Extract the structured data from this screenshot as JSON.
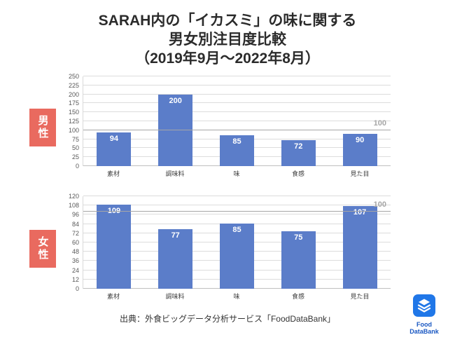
{
  "title": {
    "line1": "SARAH内の「イカスミ」の味に関する",
    "line2": "男女別注目度比較",
    "line3": "（2019年9月～2022年8月）"
  },
  "source": "出典：外食ビッグデータ分析サービス「FoodDataBank」",
  "logo": {
    "icon": "layers-icon",
    "line1": "Food",
    "line2": "DataBank"
  },
  "colors": {
    "bar": "#5b7dc9",
    "group_label_bg": "#e96a5f",
    "reference": "#a6a6a6",
    "logo_blue": "#2077e8",
    "logo_text": "#1957c2"
  },
  "chart_data": [
    {
      "type": "bar",
      "group_label": "男性",
      "categories": [
        "素材",
        "調味料",
        "味",
        "食感",
        "見た目"
      ],
      "values": [
        94,
        200,
        85,
        72,
        90
      ],
      "title": "",
      "xlabel": "",
      "ylabel": "",
      "ylim": [
        0,
        250
      ],
      "yticks": [
        0,
        25,
        50,
        75,
        100,
        125,
        150,
        175,
        200,
        225,
        250
      ],
      "grid": true,
      "reference_line": {
        "value": 100,
        "label": "100"
      }
    },
    {
      "type": "bar",
      "group_label": "女性",
      "categories": [
        "素材",
        "調味料",
        "味",
        "食感",
        "見た目"
      ],
      "values": [
        109,
        77,
        85,
        75,
        107
      ],
      "title": "",
      "xlabel": "",
      "ylabel": "",
      "ylim": [
        0,
        120
      ],
      "yticks": [
        0,
        12,
        24,
        36,
        48,
        60,
        72,
        84,
        96,
        108,
        120
      ],
      "grid": true,
      "reference_line": {
        "value": 100,
        "label": "100"
      }
    }
  ]
}
